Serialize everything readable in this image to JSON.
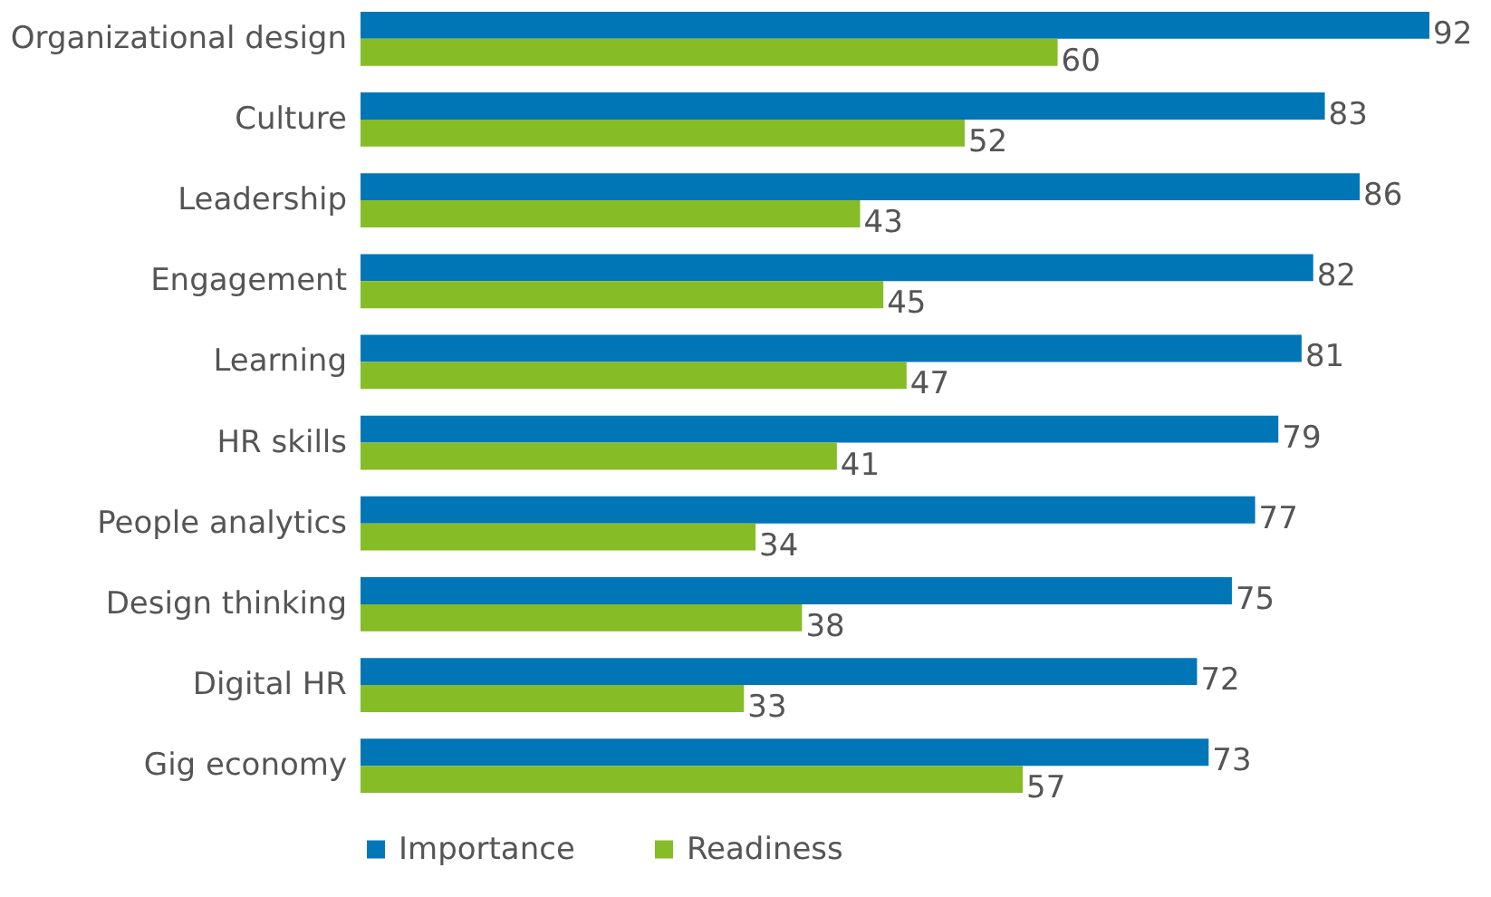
{
  "chart_data": {
    "type": "bar",
    "orientation": "horizontal",
    "categories": [
      "Organizational design",
      "Culture",
      "Leadership",
      "Engagement",
      "Learning",
      "HR skills",
      "People analytics",
      "Design thinking",
      "Digital HR",
      "Gig economy"
    ],
    "series": [
      {
        "name": "Importance",
        "color": "#0076b6",
        "values": [
          92,
          83,
          86,
          82,
          81,
          79,
          77,
          75,
          72,
          73
        ]
      },
      {
        "name": "Readiness",
        "color": "#86bc25",
        "values": [
          60,
          52,
          43,
          45,
          47,
          41,
          34,
          38,
          33,
          57
        ]
      }
    ],
    "data_labels": true,
    "legend": "bottom",
    "grid": false
  }
}
